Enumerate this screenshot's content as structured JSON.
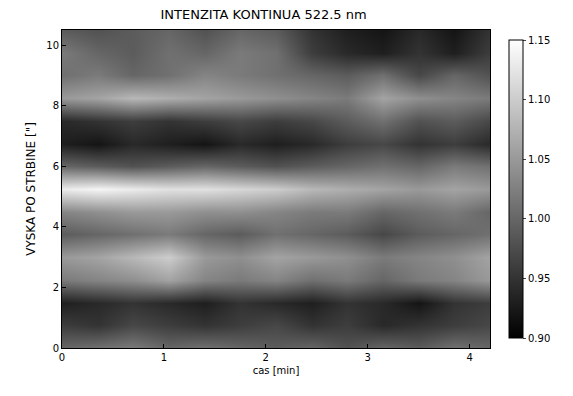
{
  "chart_data": {
    "type": "heatmap",
    "title": "INTENZITA KONTINUA 522.5 nm",
    "x_label": "cas [min]",
    "y_label": "VYSKA PO STRBINE [\"]",
    "color": "gray",
    "x": [
      0,
      0.35,
      0.7,
      1.05,
      1.4,
      1.75,
      2.1,
      2.45,
      2.8,
      3.15,
      3.5,
      3.85,
      4.2
    ],
    "y": [
      0,
      0.75,
      1.5,
      2.25,
      3,
      3.75,
      4.5,
      5.25,
      6,
      6.75,
      7.5,
      8.25,
      9,
      9.75,
      10.5
    ],
    "z": [
      [
        1.0,
        1.01,
        1.02,
        1.0,
        1.01,
        1.0,
        0.99,
        1.0,
        0.98,
        1.0,
        0.99,
        1.01,
        1.0
      ],
      [
        0.96,
        0.95,
        0.97,
        0.96,
        0.95,
        0.96,
        0.97,
        0.95,
        0.96,
        0.94,
        0.95,
        0.96,
        0.97
      ],
      [
        0.93,
        0.94,
        0.95,
        0.94,
        0.93,
        0.95,
        0.94,
        0.93,
        0.95,
        0.94,
        0.92,
        0.95,
        0.96
      ],
      [
        1.02,
        1.03,
        1.04,
        1.06,
        1.03,
        1.02,
        1.03,
        1.01,
        1.02,
        1.0,
        1.02,
        1.03,
        1.05
      ],
      [
        1.05,
        1.06,
        1.08,
        1.1,
        1.05,
        1.04,
        1.06,
        1.05,
        1.04,
        1.02,
        1.03,
        1.04,
        1.06
      ],
      [
        0.99,
        1.0,
        1.01,
        1.02,
        1.0,
        0.99,
        1.01,
        1.0,
        0.99,
        0.97,
        0.99,
        1.0,
        1.01
      ],
      [
        1.03,
        1.04,
        1.05,
        1.05,
        1.04,
        1.04,
        1.03,
        1.02,
        1.02,
        1.0,
        1.01,
        1.02,
        1.0
      ],
      [
        1.13,
        1.14,
        1.13,
        1.12,
        1.12,
        1.11,
        1.1,
        1.08,
        1.07,
        1.06,
        1.05,
        1.06,
        1.05
      ],
      [
        1.0,
        0.99,
        0.98,
        0.99,
        1.0,
        0.99,
        0.98,
        0.99,
        1.0,
        1.01,
        1.0,
        1.02,
        1.01
      ],
      [
        0.93,
        0.92,
        0.94,
        0.93,
        0.92,
        0.94,
        0.93,
        0.94,
        0.96,
        0.97,
        0.95,
        0.96,
        0.94
      ],
      [
        0.94,
        0.95,
        0.96,
        0.95,
        0.96,
        0.97,
        0.96,
        0.97,
        0.99,
        1.01,
        0.98,
        0.99,
        0.97
      ],
      [
        1.05,
        1.06,
        1.08,
        1.07,
        1.06,
        1.05,
        1.04,
        1.03,
        1.02,
        1.06,
        1.04,
        1.03,
        1.02
      ],
      [
        1.01,
        1.02,
        1.0,
        1.01,
        1.03,
        1.02,
        1.01,
        1.0,
        0.99,
        1.01,
        0.97,
        1.0,
        0.98
      ],
      [
        1.02,
        1.0,
        0.99,
        1.01,
        1.0,
        1.02,
        1.01,
        0.96,
        0.94,
        0.93,
        0.95,
        0.93,
        0.96
      ],
      [
        0.99,
        0.98,
        0.99,
        1.0,
        0.98,
        1.0,
        0.99,
        0.95,
        0.93,
        0.92,
        0.94,
        0.92,
        0.95
      ]
    ],
    "xlim": [
      0,
      4.2
    ],
    "ylim": [
      0,
      10.5
    ],
    "xticks": [
      0,
      1,
      2,
      3,
      4
    ],
    "yticks": [
      0,
      2,
      4,
      6,
      8,
      10
    ],
    "colorbar_range": [
      0.9,
      1.15
    ],
    "colorbar_ticks": [
      {
        "value": 0.9,
        "label": "0.90"
      },
      0.95,
      {
        "value": 1.0,
        "label": "1.00"
      },
      1.05,
      {
        "value": 1.1,
        "label": "1.10"
      },
      1.15
    ]
  }
}
